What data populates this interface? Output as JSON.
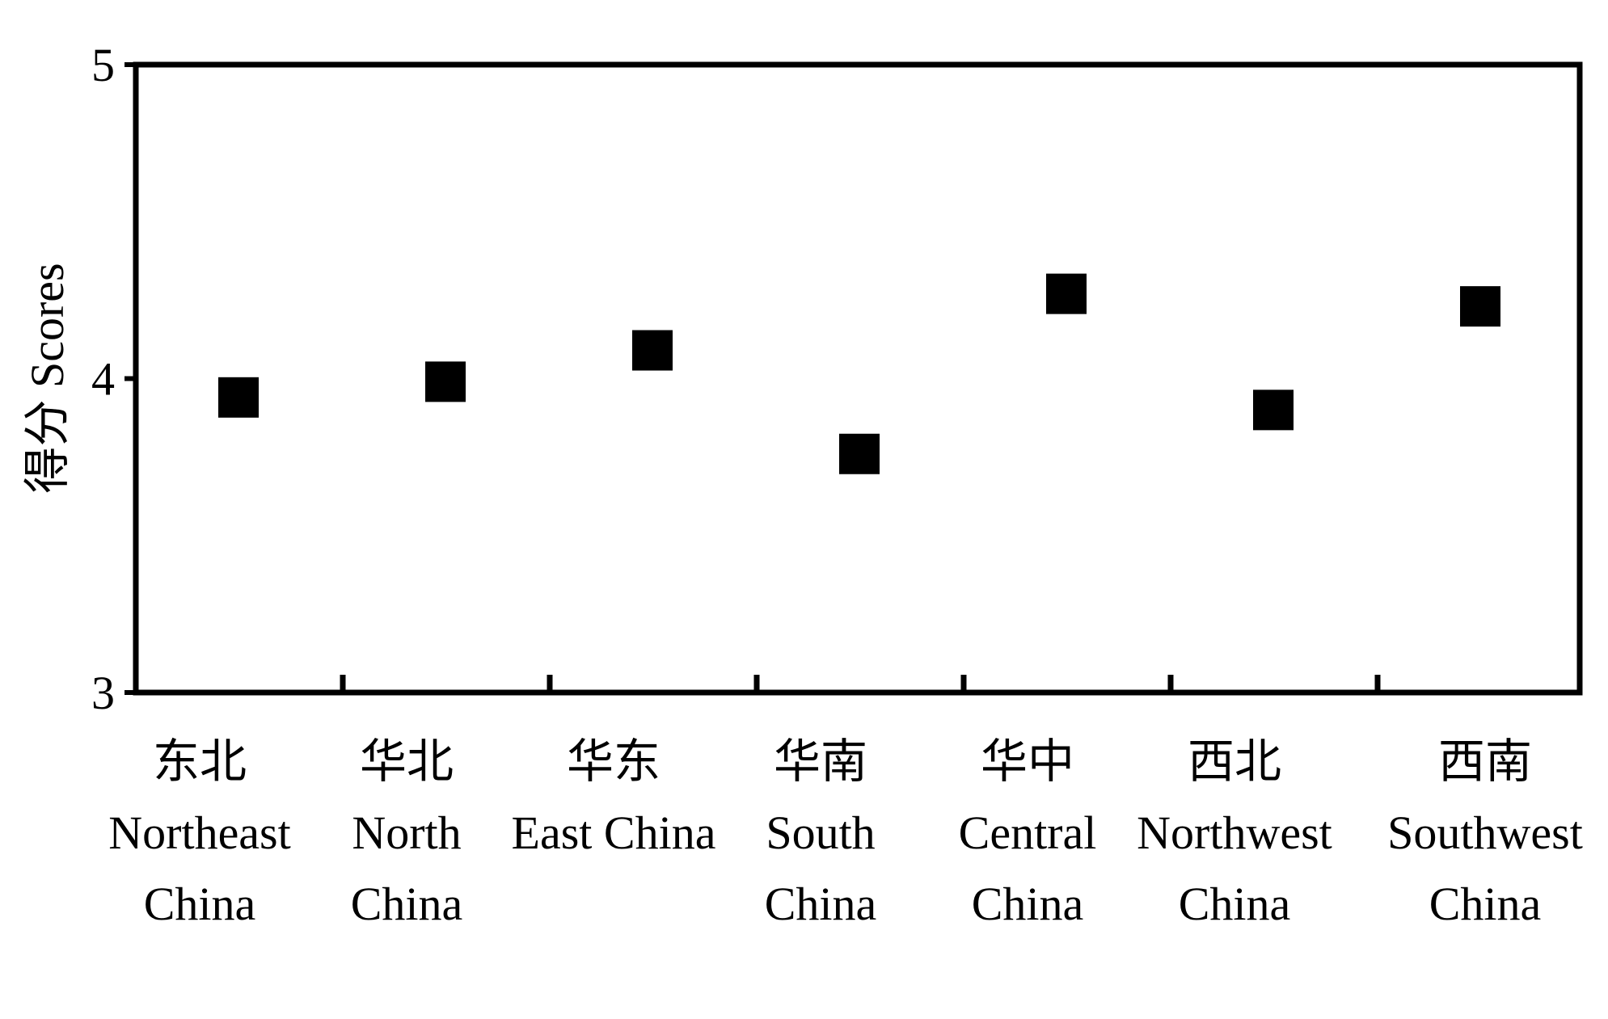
{
  "chart_data": {
    "type": "scatter",
    "ylabel": "得分 Scores",
    "xlabel": "",
    "title": "",
    "ylim": [
      3,
      5
    ],
    "yticks": [
      "3",
      "4",
      "5"
    ],
    "categories": [
      {
        "zh": "东北",
        "en": [
          "Northeast",
          "China"
        ]
      },
      {
        "zh": "华北",
        "en": [
          "North",
          "China"
        ]
      },
      {
        "zh": "华东",
        "en": [
          "East China"
        ]
      },
      {
        "zh": "华南",
        "en": [
          "South",
          "China"
        ]
      },
      {
        "zh": "华中",
        "en": [
          "Central",
          "China"
        ]
      },
      {
        "zh": "西北",
        "en": [
          "Northwest",
          "China"
        ]
      },
      {
        "zh": "西南",
        "en": [
          "Southwest",
          "China"
        ]
      }
    ],
    "values": [
      3.94,
      3.99,
      4.09,
      3.76,
      4.27,
      3.9,
      4.23
    ],
    "marker": "square",
    "marker_color": "#000000",
    "grid": false,
    "legend": "none"
  }
}
